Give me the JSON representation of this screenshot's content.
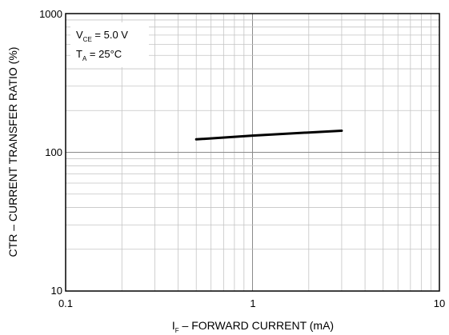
{
  "chart_data": {
    "type": "line",
    "title": "",
    "xlabel": {
      "prefix": "I",
      "subscript": "F",
      "suffix": " – FORWARD CURRENT (mA)"
    },
    "ylabel": "CTR – CURRENT TRANSFER RATIO (%)",
    "x_scale": "log",
    "y_scale": "log",
    "xlim": [
      0.1,
      10
    ],
    "ylim": [
      10,
      1000
    ],
    "x_ticks": [
      "0.1",
      "1",
      "10"
    ],
    "y_ticks": [
      "10",
      "100",
      "1000"
    ],
    "grid": true,
    "annotations": [
      {
        "prefix": "V",
        "subscript": "CE",
        "suffix": " = 5.0 V"
      },
      {
        "prefix": "T",
        "subscript": "A",
        "suffix": " = 25°C"
      }
    ],
    "series": [
      {
        "x": [
          0.5,
          1,
          2,
          3
        ],
        "y": [
          124,
          132,
          139,
          143
        ],
        "color": "#000000"
      }
    ]
  }
}
